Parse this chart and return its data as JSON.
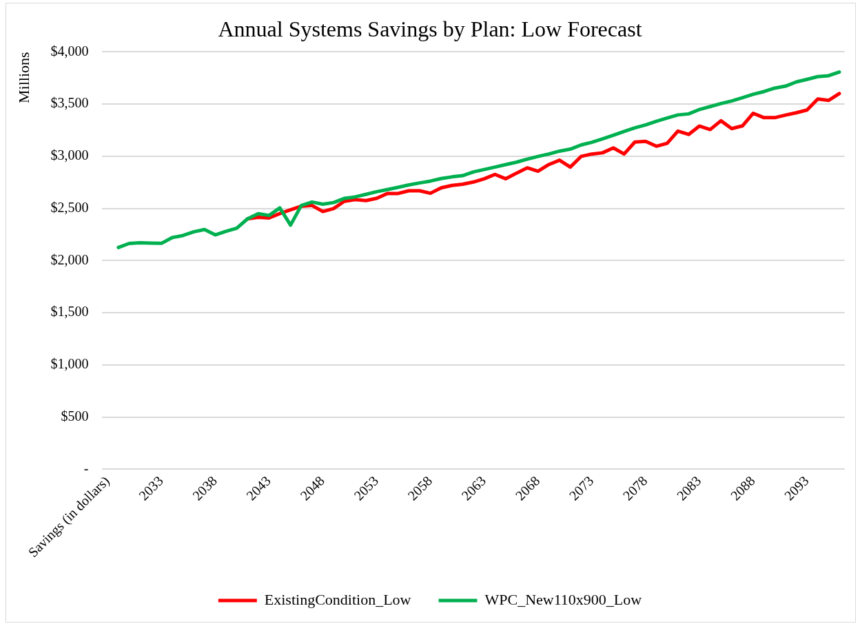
{
  "chart_data": {
    "type": "line",
    "title": "Annual Systems Savings by Plan: Low Forecast",
    "ylabel": "Millions",
    "categories": [
      "Savings (in dollars)",
      null,
      null,
      null,
      null,
      "2033",
      null,
      null,
      null,
      null,
      "2038",
      null,
      null,
      null,
      null,
      "2043",
      null,
      null,
      null,
      null,
      "2048",
      null,
      null,
      null,
      null,
      "2053",
      null,
      null,
      null,
      null,
      "2058",
      null,
      null,
      null,
      null,
      "2063",
      null,
      null,
      null,
      null,
      "2068",
      null,
      null,
      null,
      null,
      "2073",
      null,
      null,
      null,
      null,
      "2078",
      null,
      null,
      null,
      null,
      "2083",
      null,
      null,
      null,
      null,
      "2088",
      null,
      null,
      null,
      null,
      "2093",
      null,
      null,
      null
    ],
    "series": [
      {
        "name": "ExistingCondition_Low",
        "color": "#ff0000",
        "values": [
          null,
          null,
          null,
          null,
          null,
          null,
          null,
          null,
          null,
          null,
          null,
          null,
          null,
          2400,
          2415,
          2408,
          2450,
          2486,
          2521,
          2528,
          2470,
          2498,
          2568,
          2584,
          2575,
          2596,
          2643,
          2643,
          2669,
          2669,
          2645,
          2697,
          2720,
          2732,
          2753,
          2784,
          2826,
          2784,
          2838,
          2889,
          2856,
          2920,
          2962,
          2896,
          2998,
          3021,
          3033,
          3080,
          3021,
          3136,
          3143,
          3096,
          3124,
          3241,
          3209,
          3289,
          3256,
          3340,
          3265,
          3291,
          3412,
          3370,
          3370,
          3394,
          3417,
          3443,
          3549,
          3535,
          3601
        ]
      },
      {
        "name": "WPC_New110x900_Low",
        "color": "#00b050",
        "values": [
          null,
          2125,
          2164,
          2170,
          2167,
          2165,
          2220,
          2240,
          2275,
          2298,
          2246,
          2280,
          2310,
          2400,
          2450,
          2432,
          2505,
          2340,
          2528,
          2561,
          2540,
          2556,
          2596,
          2610,
          2634,
          2660,
          2681,
          2702,
          2725,
          2744,
          2762,
          2786,
          2802,
          2814,
          2850,
          2873,
          2896,
          2920,
          2943,
          2972,
          2998,
          3021,
          3049,
          3068,
          3108,
          3134,
          3166,
          3202,
          3237,
          3272,
          3300,
          3335,
          3366,
          3396,
          3406,
          3448,
          3476,
          3505,
          3530,
          3561,
          3594,
          3620,
          3653,
          3672,
          3712,
          3737,
          3763,
          3772,
          3807
        ]
      }
    ],
    "ylim": [
      0,
      4000
    ],
    "yticks": [
      {
        "value": 0,
        "label": "-"
      },
      {
        "value": 500,
        "label": "$500"
      },
      {
        "value": 1000,
        "label": "$1,000"
      },
      {
        "value": 1500,
        "label": "$1,500"
      },
      {
        "value": 2000,
        "label": "$2,000"
      },
      {
        "value": 2500,
        "label": "$2,500"
      },
      {
        "value": 3000,
        "label": "$3,000"
      },
      {
        "value": 3500,
        "label": "$3,500"
      },
      {
        "value": 4000,
        "label": "$4,000"
      }
    ],
    "grid": "y",
    "legend": "bottom",
    "marker": "none",
    "line_style": "solid"
  }
}
